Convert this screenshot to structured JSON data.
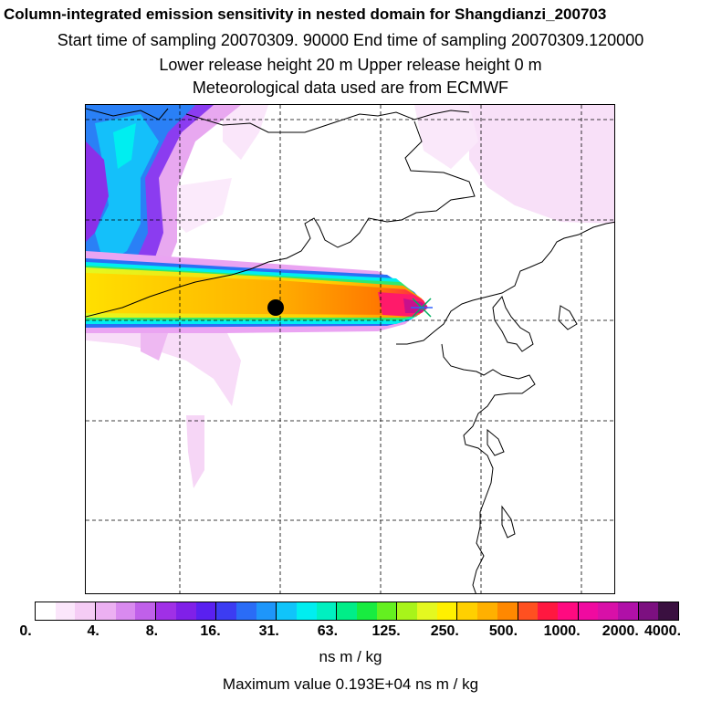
{
  "header": {
    "title": "Column-integrated emission sensitivity in nested domain for Shangdianzi_200703",
    "sampling": "Start time of sampling 20070309. 90000     End time of sampling 20070309.120000",
    "release": "Lower release height   20 m          Upper release height    0 m",
    "met": "Meteorological data used are from ECMWF"
  },
  "map": {
    "receptor_marker": "x-marker-icon",
    "location_marker": "filled-circle-icon"
  },
  "legend": {
    "colors": [
      "#ffffff",
      "#fbe6fb",
      "#f5ccf5",
      "#ecb0f2",
      "#d98aef",
      "#c060ea",
      "#a030e6",
      "#8020e8",
      "#5a20f0",
      "#3c3cf2",
      "#2a6cf6",
      "#1e96fa",
      "#10c4fa",
      "#00eef0",
      "#00f0c0",
      "#00ee88",
      "#18ec40",
      "#64f020",
      "#a8f41a",
      "#e4f820",
      "#fff000",
      "#ffd000",
      "#ffb000",
      "#ff8800",
      "#ff5020",
      "#ff1840",
      "#ff0a80",
      "#f00aa0",
      "#d810a8",
      "#b010a8",
      "#7c1080",
      "#3a1040"
    ],
    "ticks": [
      "0.",
      "4.",
      "8.",
      "16.",
      "31.",
      "63.",
      "125.",
      "250.",
      "500.",
      "1000.",
      "2000.",
      "4000."
    ],
    "units": "ns m / kg",
    "max_value": "Maximum value  0.193E+04 ns m / kg"
  }
}
